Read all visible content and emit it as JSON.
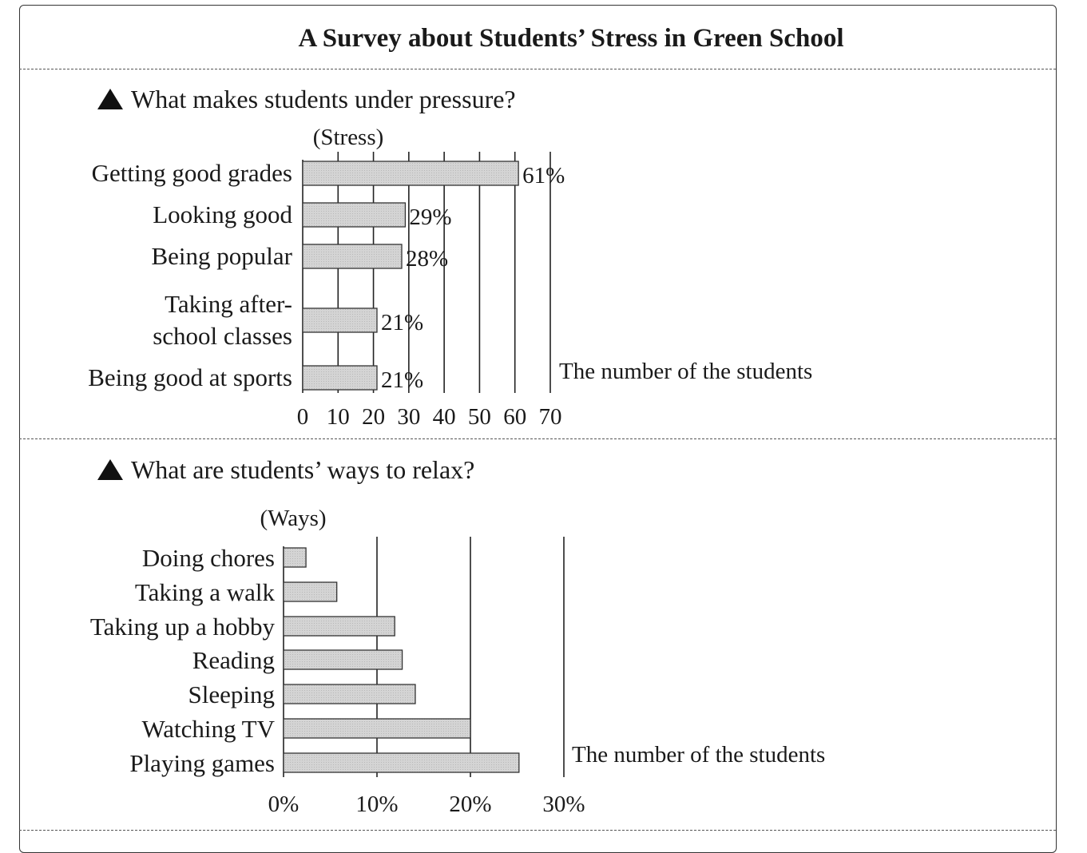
{
  "page": {
    "title": "A Survey about Students’ Stress in Green School"
  },
  "chart_data": [
    {
      "type": "bar",
      "orientation": "horizontal",
      "title": "What makes students under pressure?",
      "ylabel": "(Stress)",
      "xlabel": "The number of the students",
      "categories": [
        "Getting good grades",
        "Looking good",
        "Being popular",
        "Taking after-school classes",
        "Being good at sports"
      ],
      "category_lines": [
        [
          "Getting good grades"
        ],
        [
          "Looking good"
        ],
        [
          "Being popular"
        ],
        [
          "Taking after-",
          "school classes"
        ],
        [
          "Being good at sports"
        ]
      ],
      "values": [
        61,
        29,
        28,
        21,
        21
      ],
      "data_labels": [
        "61%",
        "29%",
        "28%",
        "21%",
        "21%"
      ],
      "xlim": [
        0,
        70
      ],
      "xticks": [
        "0",
        "10",
        "20",
        "30",
        "40",
        "50",
        "60",
        "70"
      ],
      "grid": true,
      "bar_color": "#d4d4d4"
    },
    {
      "type": "bar",
      "orientation": "horizontal",
      "title": "What are students’ ways to relax?",
      "ylabel": "(Ways)",
      "xlabel": "The number of the students",
      "categories": [
        "Doing chores",
        "Taking a walk",
        "Taking up a hobby",
        "Reading",
        "Sleeping",
        "Watching TV",
        "Playing games"
      ],
      "values": [
        2.4,
        5.7,
        11.9,
        12.7,
        14.1,
        20,
        25.2
      ],
      "xlim": [
        0,
        30
      ],
      "xticks": [
        "0%",
        "10%",
        "20%",
        "30%"
      ],
      "grid": true,
      "bar_color": "#d4d4d4"
    }
  ]
}
